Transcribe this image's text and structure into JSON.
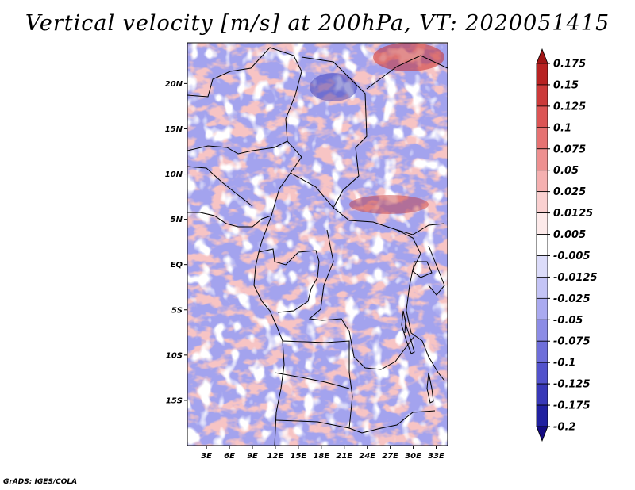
{
  "title": "Vertical velocity [m/s] at 200hPa, VT: 2020051415",
  "credit": "GrADS: IGES/COLA",
  "map": {
    "lat_labels": [
      "20N",
      "15N",
      "10N",
      "5N",
      "EQ",
      "5S",
      "10S",
      "15S"
    ],
    "lat_values": [
      20,
      15,
      10,
      5,
      0,
      -5,
      -10,
      -15
    ],
    "lon_labels": [
      "3E",
      "6E",
      "9E",
      "12E",
      "15E",
      "18E",
      "21E",
      "24E",
      "27E",
      "30E",
      "33E"
    ],
    "lon_values": [
      3,
      6,
      9,
      12,
      15,
      18,
      21,
      24,
      27,
      30,
      33
    ],
    "lon_range": [
      0.5,
      34.5
    ],
    "lat_range": [
      -20,
      24.5
    ]
  },
  "colorbar": {
    "labels": [
      "0.175",
      "0.15",
      "0.125",
      "0.1",
      "0.075",
      "0.05",
      "0.025",
      "0.0125",
      "0.005",
      "-0.005",
      "-0.0125",
      "-0.025",
      "-0.05",
      "-0.075",
      "-0.1",
      "-0.125",
      "-0.175",
      "-0.2"
    ],
    "colors": [
      "#a01616",
      "#b82222",
      "#cc3a3a",
      "#dc5555",
      "#e67272",
      "#ee9090",
      "#f5b0b0",
      "#fad0d0",
      "#fdeaea",
      "#ffffff",
      "#dcdcfa",
      "#c4c4f6",
      "#aaaaf0",
      "#8c8ce6",
      "#6e6eda",
      "#5252cc",
      "#3838b8",
      "#2020a0",
      "#140c82"
    ]
  }
}
